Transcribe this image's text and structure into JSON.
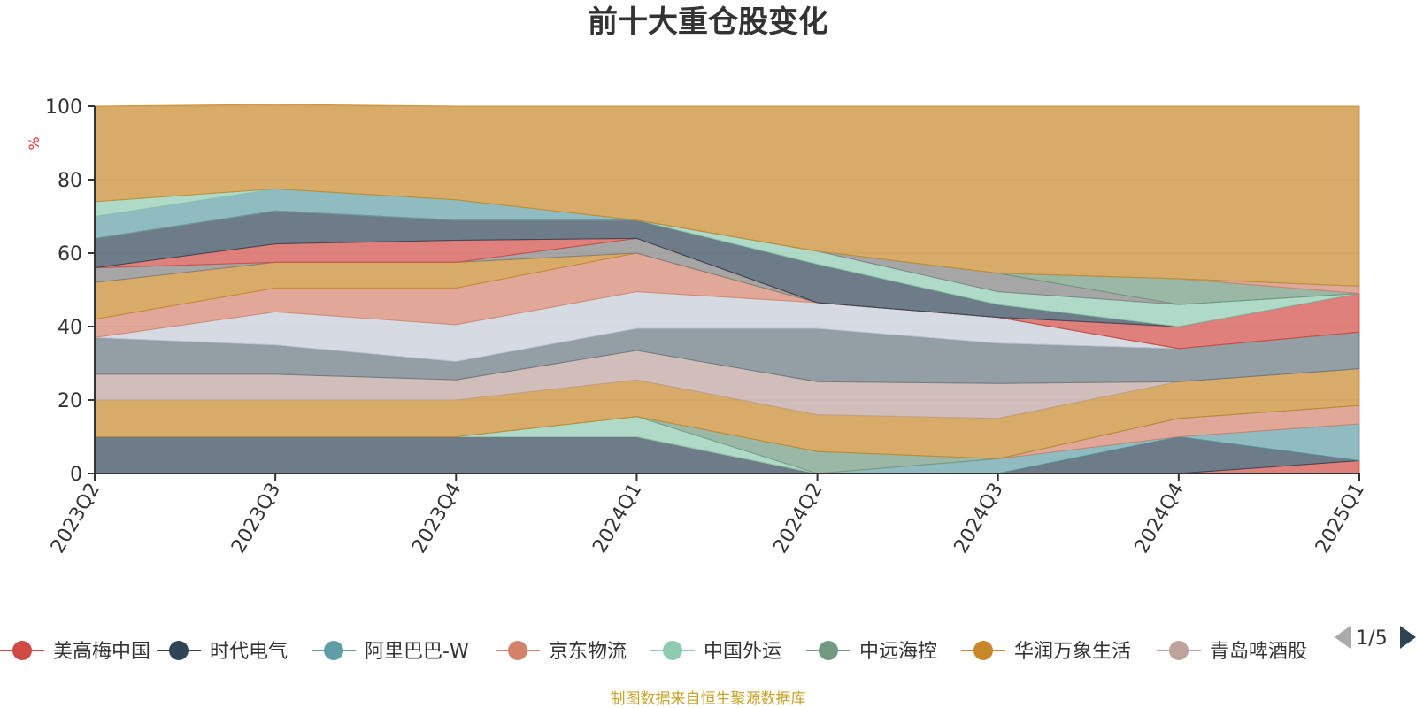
{
  "chart_data": {
    "type": "area",
    "stacked": true,
    "title": "前十大重仓股变化",
    "ylabel": "%",
    "ylim": [
      0,
      100
    ],
    "yticks": [
      0,
      20,
      40,
      60,
      80,
      100
    ],
    "grid": true,
    "categories": [
      "2023Q2",
      "2023Q3",
      "2023Q4",
      "2024Q1",
      "2024Q2",
      "2024Q3",
      "2024Q4",
      "2025Q1"
    ],
    "series": [
      {
        "name": "美高梅中国",
        "color": "#d14a45",
        "values": [
          0,
          0,
          0,
          0,
          0,
          0,
          0,
          3.5
        ]
      },
      {
        "name": "时代电气",
        "color": "#2f4556",
        "values": [
          10,
          10,
          10,
          10,
          0,
          0,
          10,
          0
        ]
      },
      {
        "name": "阿里巴巴-W",
        "color": "#5f9ea6",
        "values": [
          0,
          0,
          0,
          0,
          0,
          4,
          0,
          10
        ]
      },
      {
        "name": "京东物流",
        "color": "#d4826c",
        "values": [
          0,
          0,
          0,
          0,
          0,
          0,
          5,
          5
        ]
      },
      {
        "name": "中国外运",
        "color": "#8fcbb0",
        "values": [
          0,
          0,
          0,
          5.5,
          0,
          0,
          0,
          0
        ]
      },
      {
        "name": "中远海控",
        "color": "#719a80",
        "values": [
          0,
          0,
          0,
          0,
          6,
          0,
          0,
          0
        ]
      },
      {
        "name": "华润万象生活",
        "color": "#c8882a",
        "values": [
          10,
          10,
          10,
          10,
          10,
          11,
          10,
          10
        ]
      },
      {
        "name": "青岛啤酒股份",
        "color": "#bea39c",
        "values": [
          7,
          7,
          5.5,
          8,
          9,
          9.5,
          0,
          0
        ]
      },
      {
        "name": "",
        "color": "#67757f",
        "values": [
          10,
          8,
          5,
          6,
          14.5,
          11,
          9,
          10
        ]
      },
      {
        "name": "",
        "color": "#c4cbd6",
        "values": [
          0,
          9,
          10,
          10,
          7,
          7,
          0,
          0
        ]
      },
      {
        "name": "",
        "color": "#d4826c",
        "values": [
          5,
          6.5,
          10,
          10.5,
          0,
          0,
          0,
          0
        ]
      },
      {
        "name": "",
        "color": "#c8882a",
        "values": [
          10,
          7,
          7,
          0,
          0,
          0,
          0,
          0
        ]
      },
      {
        "name": "",
        "color": "#808080",
        "values": [
          4,
          0,
          0,
          4,
          0,
          0,
          0,
          0
        ]
      },
      {
        "name": "",
        "color": "#d14a45",
        "values": [
          0,
          5,
          6,
          0,
          0,
          0,
          6,
          10.5
        ]
      },
      {
        "name": "",
        "color": "#2f4556",
        "values": [
          8,
          9,
          5.5,
          5,
          10.5,
          3.5,
          0,
          0
        ]
      },
      {
        "name": "",
        "color": "#8fcbb0",
        "values": [
          0,
          0,
          0,
          0,
          3.5,
          3.5,
          6,
          0
        ]
      },
      {
        "name": "",
        "color": "#808080",
        "values": [
          0,
          0,
          0,
          0,
          0,
          5,
          0,
          0
        ]
      },
      {
        "name": "",
        "color": "#719a80",
        "values": [
          0,
          0,
          0,
          0,
          0,
          0,
          7,
          0
        ]
      },
      {
        "name": "",
        "color": "#d4826c",
        "values": [
          0,
          0,
          0,
          0,
          0,
          0,
          0,
          2
        ]
      },
      {
        "name": "",
        "color": "#5f9ea6",
        "values": [
          6,
          6,
          5.5,
          0,
          0,
          0,
          0,
          0
        ]
      },
      {
        "name": "",
        "color": "#8fcbb0",
        "values": [
          4,
          0,
          0,
          0,
          0,
          0,
          0,
          0
        ]
      },
      {
        "name": "",
        "color": "#c8882a",
        "values": [
          26,
          23,
          25.5,
          31,
          39.5,
          45.5,
          47,
          49
        ]
      }
    ]
  },
  "legend": {
    "items": [
      {
        "name": "美高梅中国",
        "color": "#d14a45"
      },
      {
        "name": "时代电气",
        "color": "#2f4556"
      },
      {
        "name": "阿里巴巴-W",
        "color": "#5f9ea6"
      },
      {
        "name": "京东物流",
        "color": "#d4826c"
      },
      {
        "name": "中国外运",
        "color": "#8fcbb0"
      },
      {
        "name": "中远海控",
        "color": "#719a80"
      },
      {
        "name": "华润万象生活",
        "color": "#c8882a"
      },
      {
        "name": "青岛啤酒股份",
        "color": "#bea39c"
      }
    ],
    "page_text": "1/5",
    "prev_icon": "triangle-left-icon",
    "next_icon": "triangle-right-icon"
  },
  "source": "制图数据来自恒生聚源数据库"
}
